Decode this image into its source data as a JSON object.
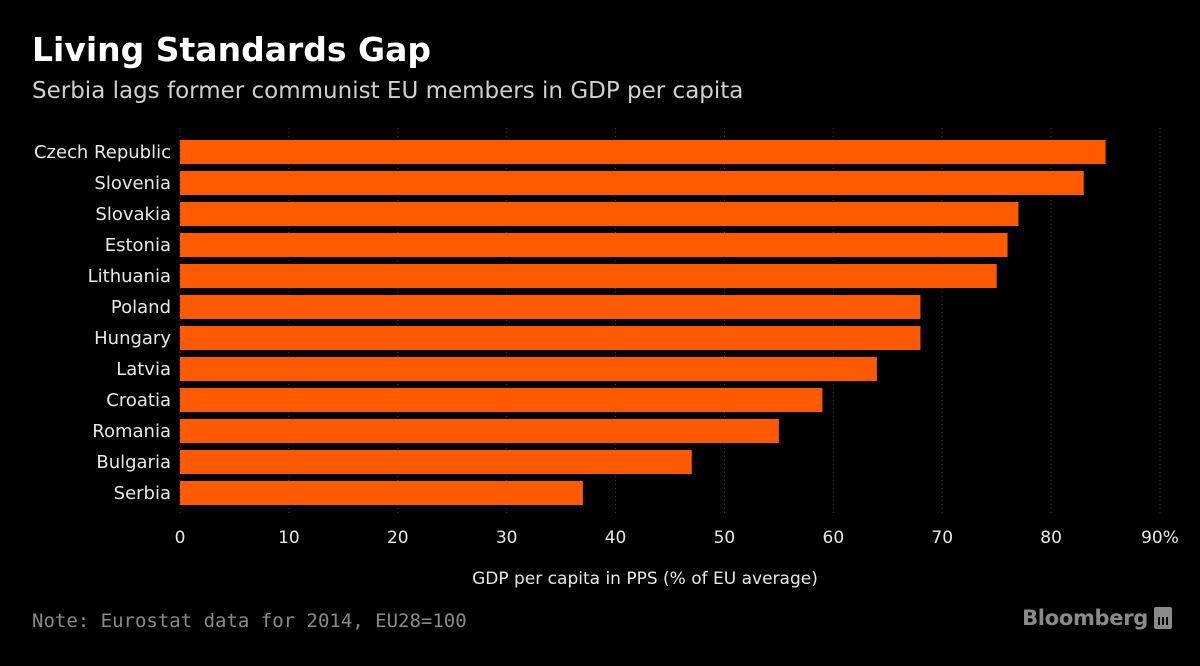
{
  "title": "Living Standards Gap",
  "subtitle": "Serbia lags former communist EU members in GDP per capita",
  "note": "Note: Eurostat data for 2014, EU28=100",
  "brand": "Bloomberg",
  "colors": {
    "bar": "#ff5a00",
    "background": "#000000",
    "gridline": "#444444"
  },
  "chart_data": {
    "type": "bar",
    "orientation": "horizontal",
    "categories": [
      "Czech Republic",
      "Slovenia",
      "Slovakia",
      "Estonia",
      "Lithuania",
      "Poland",
      "Hungary",
      "Latvia",
      "Croatia",
      "Romania",
      "Bulgaria",
      "Serbia"
    ],
    "values": [
      85,
      83,
      77,
      76,
      75,
      68,
      68,
      64,
      59,
      55,
      47,
      37
    ],
    "xlabel": "GDP per capita in PPS (% of EU average)",
    "ylabel": "",
    "xlim": [
      0,
      90
    ],
    "ticks": [
      0,
      10,
      20,
      30,
      40,
      50,
      60,
      70,
      80,
      90
    ],
    "tick_labels": [
      "0",
      "10",
      "20",
      "30",
      "40",
      "50",
      "60",
      "70",
      "80",
      "90%"
    ],
    "grid": true
  }
}
